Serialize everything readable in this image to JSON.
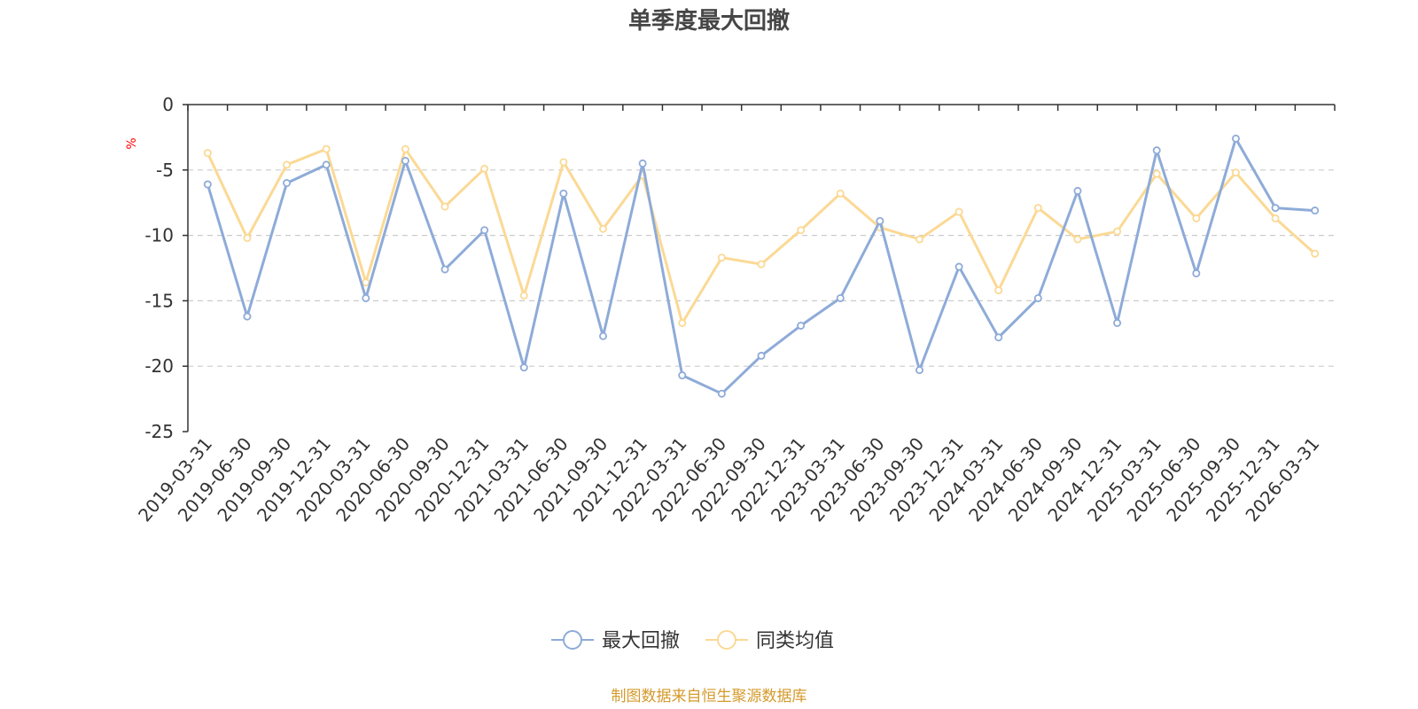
{
  "chart_data": {
    "type": "line",
    "title": "单季度最大回撤",
    "ylabel": "%",
    "ylim": [
      -25,
      0
    ],
    "yticks": [
      0,
      -5,
      -10,
      -15,
      -20,
      -25
    ],
    "grid": true,
    "legend_position": "bottom-center",
    "categories": [
      "2019-03-31",
      "2019-06-30",
      "2019-09-30",
      "2019-12-31",
      "2020-03-31",
      "2020-06-30",
      "2020-09-30",
      "2020-12-31",
      "2021-03-31",
      "2021-06-30",
      "2021-09-30",
      "2021-12-31",
      "2022-03-31",
      "2022-06-30",
      "2022-09-30",
      "2022-12-31",
      "2023-03-31",
      "2023-06-30",
      "2023-09-30",
      "2023-12-31",
      "2024-03-31",
      "2024-06-30",
      "2024-09-30",
      "2024-12-31",
      "2025-03-31",
      "2025-06-30",
      "2025-09-30",
      "2025-12-31",
      "2026-03-31"
    ],
    "series": [
      {
        "name": "最大回撤",
        "color": "#8eabd8",
        "values": [
          -6.1,
          -16.2,
          -6.0,
          -4.6,
          -14.8,
          -4.3,
          -12.6,
          -9.6,
          -20.1,
          -6.8,
          -17.7,
          -4.5,
          -20.7,
          -22.1,
          -19.2,
          -16.9,
          -14.8,
          -8.9,
          -20.3,
          -12.4,
          -17.8,
          -14.8,
          -6.6,
          -16.7,
          -3.5,
          -12.9,
          -2.6,
          -7.9,
          -8.1
        ]
      },
      {
        "name": "同类均值",
        "color": "#fbd995",
        "values": [
          -3.7,
          -10.2,
          -4.6,
          -3.4,
          -13.6,
          -3.4,
          -7.8,
          -4.9,
          -14.6,
          -4.4,
          -9.5,
          -5.4,
          -16.7,
          -11.7,
          -12.2,
          -9.6,
          -6.8,
          -9.4,
          -10.3,
          -8.2,
          -14.2,
          -7.9,
          -10.3,
          -9.7,
          -5.3,
          -8.7,
          -5.2,
          -8.7,
          -11.4
        ]
      }
    ]
  },
  "footer": {
    "source": "制图数据来自恒生聚源数据库"
  },
  "colors": {
    "axis": "#333333",
    "grid": "#cccccc",
    "ylabel": "#ff0000",
    "title": "#464646",
    "source": "#d49a2b"
  }
}
